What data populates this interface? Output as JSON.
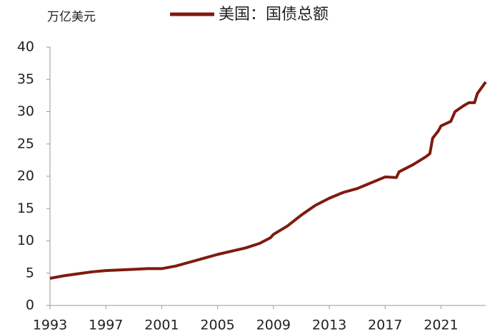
{
  "chart_data": {
    "type": "line",
    "y_label": "万亿美元",
    "x": [
      1993,
      1994,
      1995,
      1996,
      1997,
      1998,
      1999,
      2000,
      2001,
      2002,
      2003,
      2004,
      2005,
      2006,
      2007,
      2008,
      2008.8,
      2009,
      2010,
      2011,
      2012,
      2013,
      2014,
      2015,
      2016,
      2017,
      2017.8,
      2018,
      2019,
      2019.9,
      2020.2,
      2020.4,
      2020.8,
      2021,
      2021.7,
      2022,
      2022.6,
      2023,
      2023.4,
      2023.6,
      2024,
      2024.2
    ],
    "series": [
      {
        "name": "美国：国债总额",
        "color": "#7f1a0e",
        "values": [
          4.2,
          4.6,
          4.9,
          5.2,
          5.4,
          5.5,
          5.6,
          5.7,
          5.7,
          6.1,
          6.7,
          7.3,
          7.9,
          8.4,
          8.9,
          9.6,
          10.5,
          11.0,
          12.3,
          14.0,
          15.5,
          16.6,
          17.5,
          18.1,
          19.0,
          19.9,
          19.8,
          20.7,
          21.8,
          23.0,
          23.5,
          25.9,
          27.0,
          27.8,
          28.5,
          30.0,
          30.9,
          31.4,
          31.4,
          32.8,
          34.0,
          34.6
        ]
      }
    ],
    "xlim": [
      1993,
      2024.2
    ],
    "xticks": [
      1993,
      1997,
      2001,
      2005,
      2009,
      2013,
      2017,
      2021
    ],
    "ylim": [
      0,
      40
    ],
    "yticks": [
      0,
      5,
      10,
      15,
      20,
      25,
      30,
      35,
      40
    ],
    "grid": false
  }
}
